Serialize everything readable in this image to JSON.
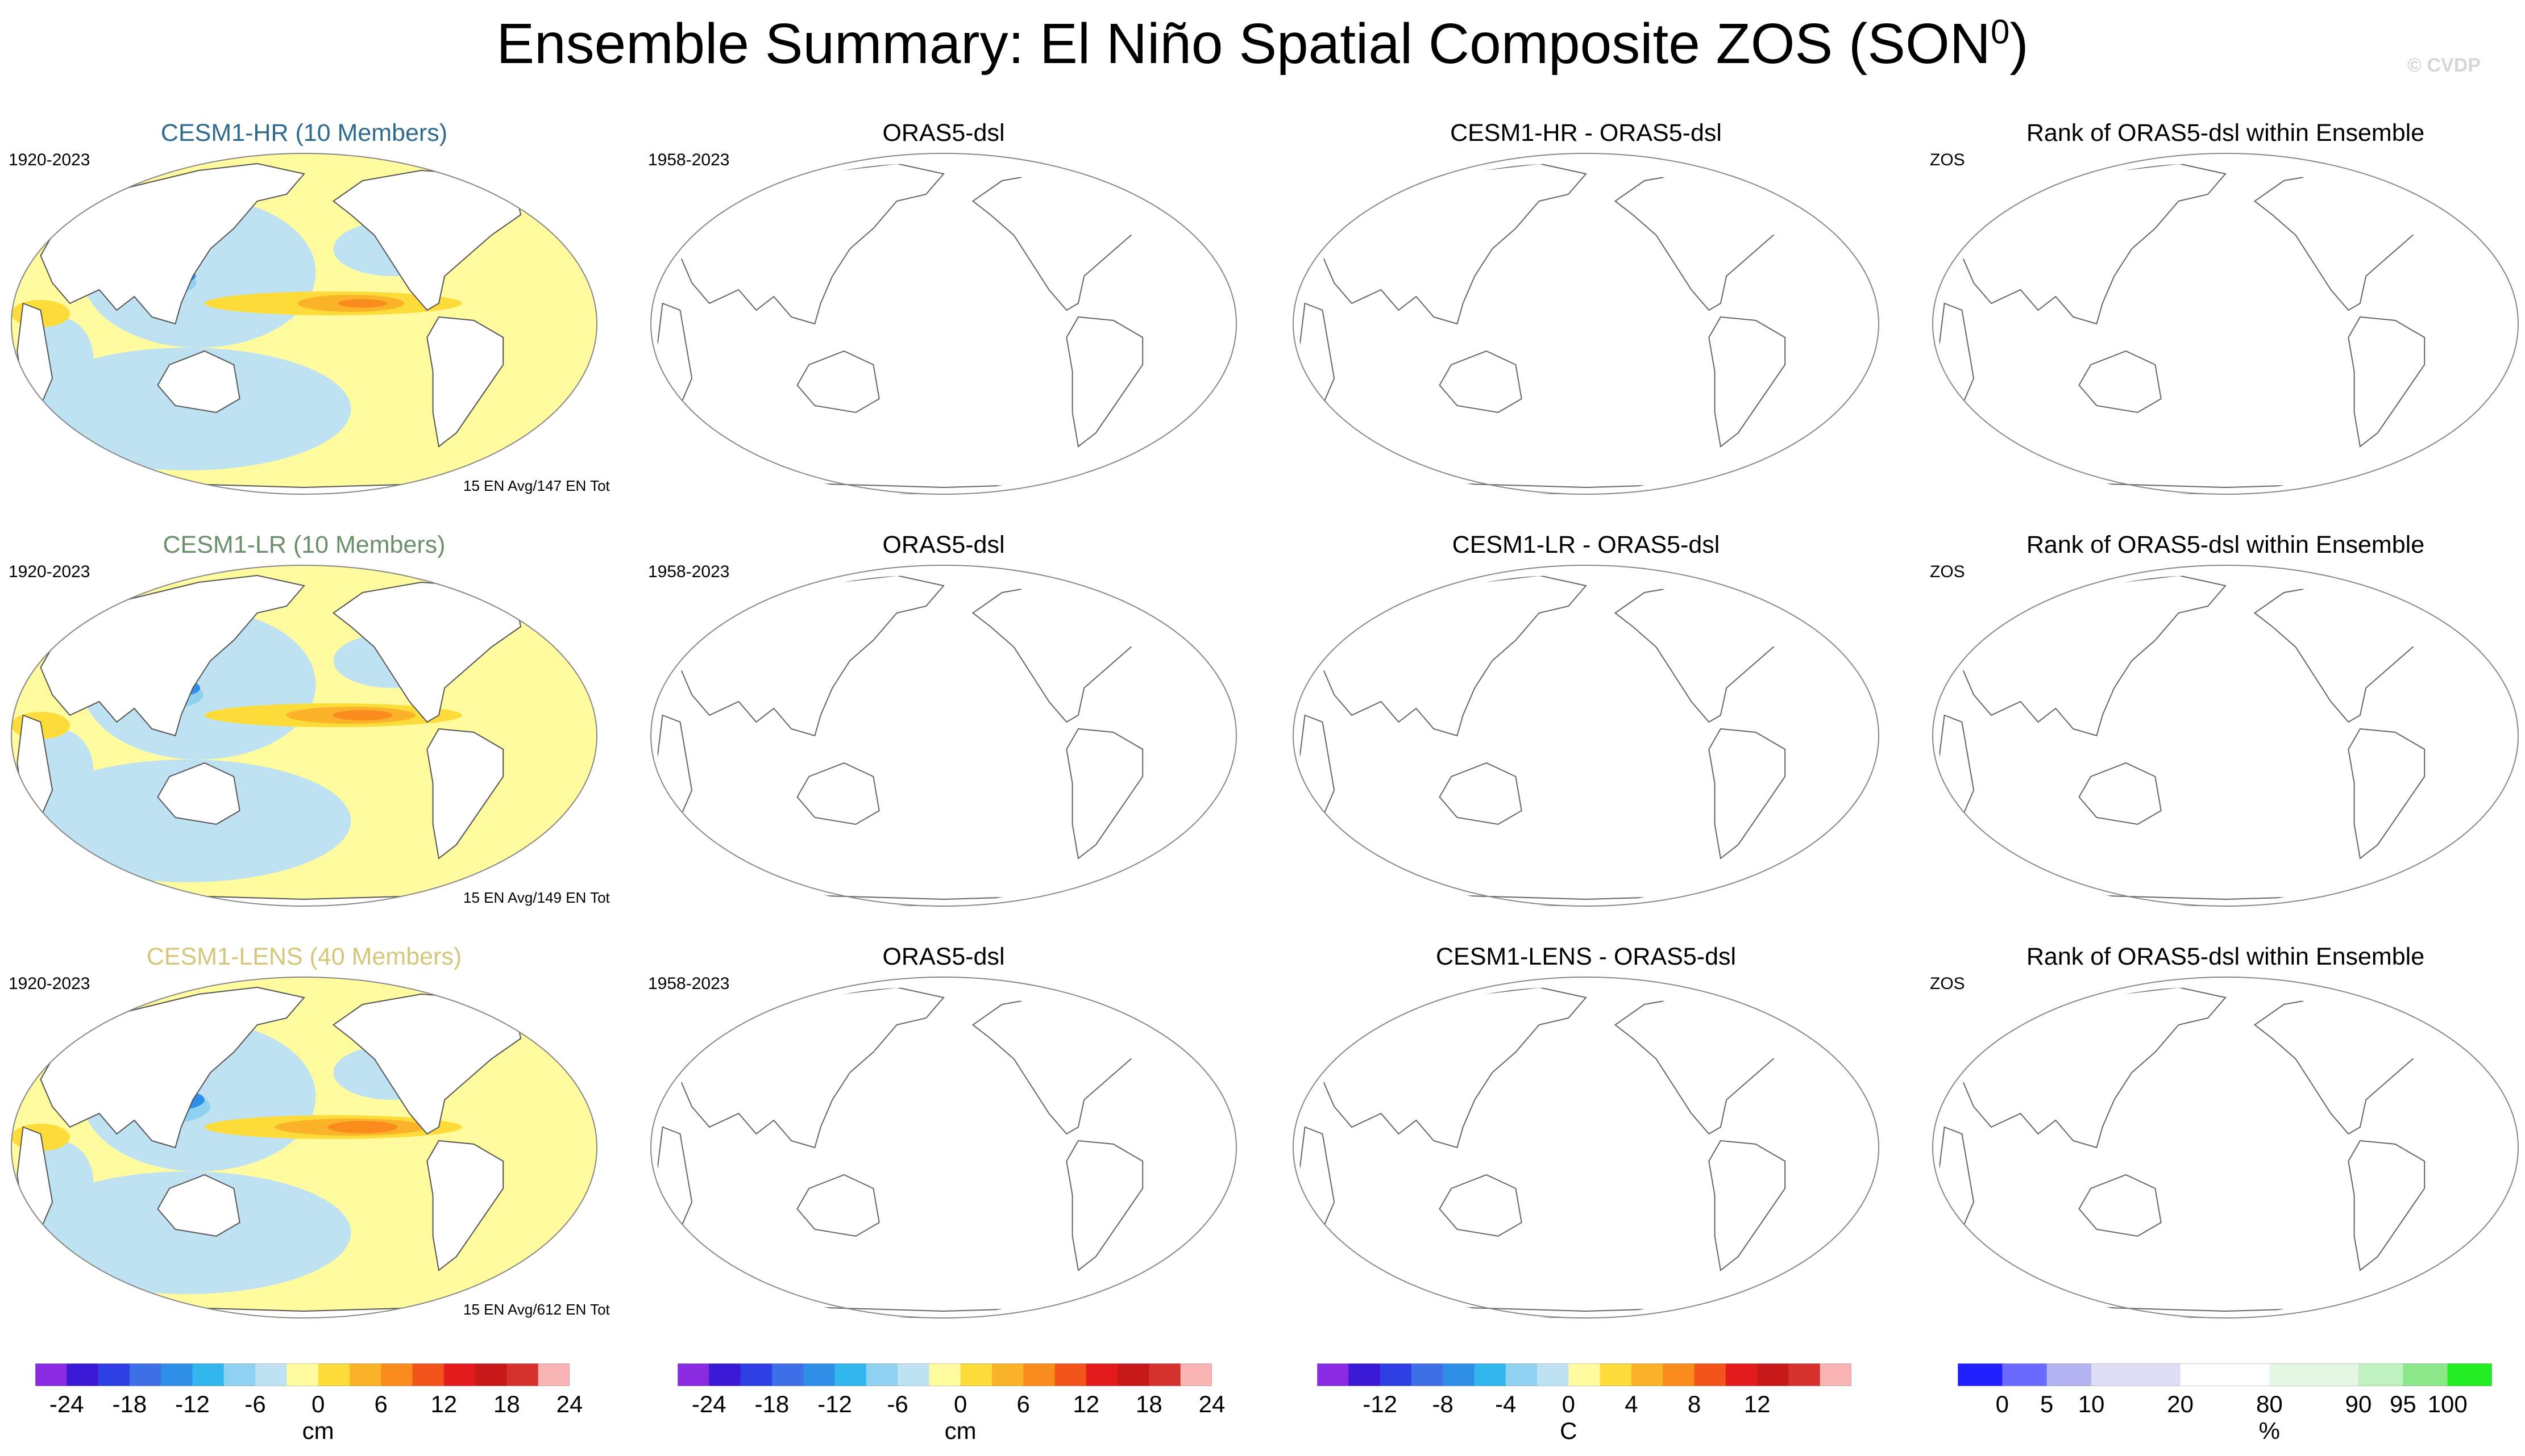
{
  "title": {
    "main": "Ensemble Summary: El Niño Spatial Composite ZOS (SON",
    "sup": "0",
    "close": ")"
  },
  "watermark": "© CVDP",
  "rows": [
    {
      "model": {
        "title": "CESM1-HR (10 Members)",
        "color": "#2f6b8f",
        "years": "1920-2023",
        "footer": "15 EN Avg/147 EN Tot",
        "intensity": 0.7
      },
      "obs": {
        "title": "ORAS5-dsl",
        "years": "1958-2023"
      },
      "diff": {
        "title": "CESM1-HR - ORAS5-dsl"
      },
      "rank": {
        "title": "Rank of ORAS5-dsl within Ensemble",
        "var": "ZOS"
      }
    },
    {
      "model": {
        "title": "CESM1-LR (10 Members)",
        "color": "#6b8f6b",
        "years": "1920-2023",
        "footer": "15 EN Avg/149 EN Tot",
        "intensity": 0.85
      },
      "obs": {
        "title": "ORAS5-dsl",
        "years": "1958-2023"
      },
      "diff": {
        "title": "CESM1-LR - ORAS5-dsl"
      },
      "rank": {
        "title": "Rank of ORAS5-dsl within Ensemble",
        "var": "ZOS"
      }
    },
    {
      "model": {
        "title": "CESM1-LENS (40 Members)",
        "color": "#d4c77a",
        "years": "1920-2023",
        "footer": "15 EN Avg/612 EN Tot",
        "intensity": 1.0
      },
      "obs": {
        "title": "ORAS5-dsl",
        "years": "1958-2023"
      },
      "diff": {
        "title": "CESM1-LENS - ORAS5-dsl"
      },
      "rank": {
        "title": "Rank of ORAS5-dsl within Ensemble",
        "var": "ZOS"
      }
    }
  ],
  "colorbars": [
    {
      "unit": "cm",
      "colors": [
        "#8a2be2",
        "#3b18d6",
        "#2f3fe6",
        "#3d6fe8",
        "#2f8fe8",
        "#31b6ee",
        "#8fd1f0",
        "#bfe2f2",
        "#fffb9e",
        "#fddc3a",
        "#fbb42a",
        "#f98c1c",
        "#f2541b",
        "#e41a1c",
        "#c8191a",
        "#d6322d",
        "#fbb4b4"
      ],
      "ticks": [
        "-24",
        "-18",
        "-12",
        "-6",
        "0",
        "6",
        "12",
        "18",
        "24"
      ],
      "tickBoundaries": [
        1,
        3,
        5,
        7,
        9,
        11,
        13,
        15,
        17
      ]
    },
    {
      "unit": "cm",
      "colors": [
        "#8a2be2",
        "#3b18d6",
        "#2f3fe6",
        "#3d6fe8",
        "#2f8fe8",
        "#31b6ee",
        "#8fd1f0",
        "#bfe2f2",
        "#fffb9e",
        "#fddc3a",
        "#fbb42a",
        "#f98c1c",
        "#f2541b",
        "#e41a1c",
        "#c8191a",
        "#d6322d",
        "#fbb4b4"
      ],
      "ticks": [
        "-24",
        "-18",
        "-12",
        "-6",
        "0",
        "6",
        "12",
        "18",
        "24"
      ],
      "tickBoundaries": [
        1,
        3,
        5,
        7,
        9,
        11,
        13,
        15,
        17
      ]
    },
    {
      "unit": "C",
      "colors": [
        "#8a2be2",
        "#3b18d6",
        "#2f3fe6",
        "#3d6fe8",
        "#2f8fe8",
        "#31b6ee",
        "#8fd1f0",
        "#bfe2f2",
        "#fffb9e",
        "#fddc3a",
        "#fbb42a",
        "#f98c1c",
        "#f2541b",
        "#e41a1c",
        "#c8191a",
        "#d6322d",
        "#fbb4b4"
      ],
      "ticks": [
        "-12",
        "-8",
        "-4",
        "0",
        "4",
        "8",
        "12"
      ],
      "tickBoundaries": [
        2,
        4,
        6,
        8,
        10,
        12,
        14
      ]
    },
    {
      "unit": "%",
      "colors": [
        "#1f1fff",
        "#6a6aff",
        "#b4b4f2",
        "#dedef6",
        "#dedef6",
        "#ffffff",
        "#ffffff",
        "#e4f8e4",
        "#e4f8e4",
        "#bff2bf",
        "#8ae88a",
        "#22ee22"
      ],
      "ticks": [
        "0",
        "5",
        "10",
        "20",
        "80",
        "90",
        "95",
        "100"
      ],
      "tickBoundaries": [
        1,
        2,
        3,
        5,
        7,
        9,
        10,
        11
      ]
    }
  ]
}
